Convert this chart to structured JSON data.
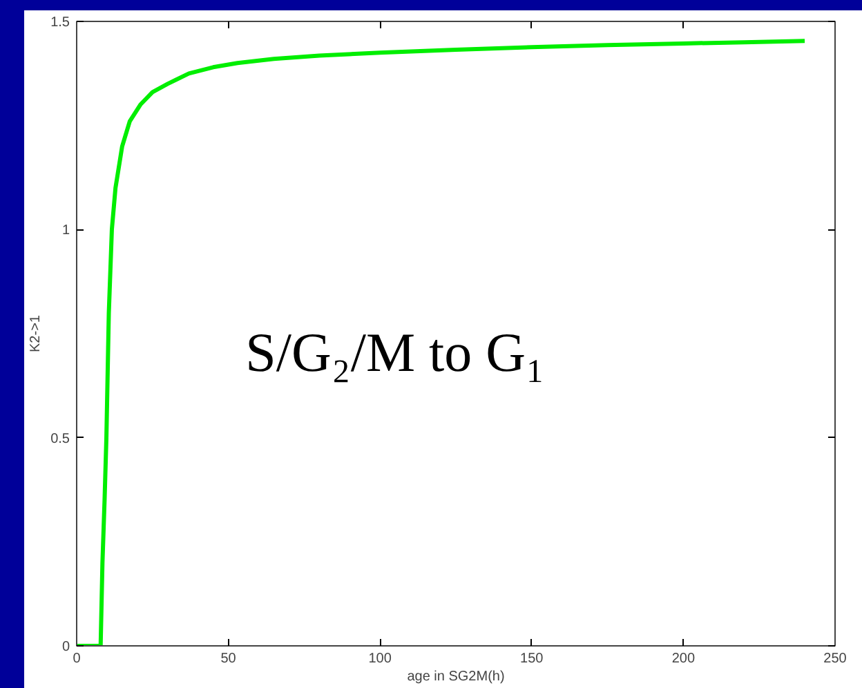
{
  "chart_data": {
    "type": "line",
    "xlabel": "age in SG2M(h)",
    "ylabel": "K2->1",
    "annotations": [
      "S/G₂/M to G₁"
    ],
    "x": [
      0,
      7.9,
      8.5,
      9.2,
      9.8,
      10.6,
      11.6,
      12.8,
      15,
      17.5,
      21,
      25,
      30,
      37,
      45,
      53,
      65,
      80,
      100,
      125,
      150,
      175,
      200,
      220,
      240
    ],
    "series": [
      {
        "color": "#00ee00",
        "values": [
          0,
          0,
          0.2,
          0.35,
          0.5,
          0.8,
          1.0,
          1.1,
          1.2,
          1.26,
          1.3,
          1.33,
          1.35,
          1.375,
          1.39,
          1.4,
          1.41,
          1.418,
          1.425,
          1.432,
          1.438,
          1.443,
          1.447,
          1.45,
          1.453
        ]
      }
    ],
    "xlim": [
      0,
      250
    ],
    "ylim": [
      0,
      1.5
    ],
    "xticks": [
      0,
      50,
      100,
      150,
      200,
      250
    ],
    "yticks": [
      0,
      0.5,
      1,
      1.5
    ],
    "grid": false,
    "marker": "none",
    "line_style": "solid"
  }
}
